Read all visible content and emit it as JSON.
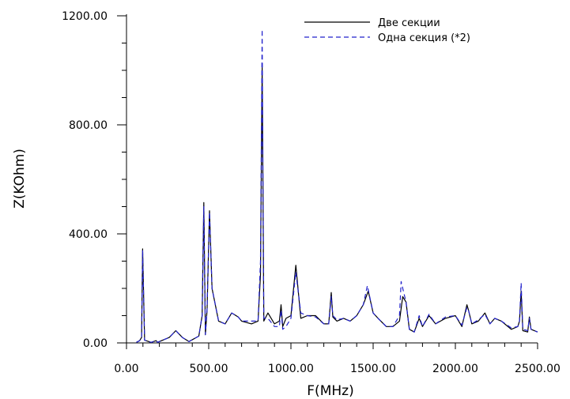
{
  "chart_data": {
    "type": "line",
    "xlabel": "F(MHz)",
    "ylabel": "Z(KOhm)",
    "xlim": [
      0,
      2500
    ],
    "ylim": [
      0,
      1200
    ],
    "x_ticks": [
      "0.00",
      "500.00",
      "1000.00",
      "1500.00",
      "2000.00",
      "2500.00"
    ],
    "y_ticks": [
      "0.00",
      "400.00",
      "800.00",
      "1200.00"
    ],
    "legend_position": "top-right",
    "series": [
      {
        "name": "Две секции",
        "color": "#000000",
        "dash": "solid",
        "x": [
          60,
          80,
          92,
          98,
          110,
          150,
          180,
          190,
          200,
          260,
          300,
          340,
          380,
          440,
          460,
          470,
          480,
          490,
          505,
          520,
          560,
          600,
          640,
          680,
          700,
          760,
          800,
          815,
          825,
          835,
          860,
          900,
          930,
          940,
          950,
          970,
          1000,
          1030,
          1060,
          1100,
          1150,
          1200,
          1230,
          1245,
          1255,
          1280,
          1320,
          1360,
          1400,
          1440,
          1470,
          1500,
          1530,
          1580,
          1620,
          1660,
          1680,
          1700,
          1720,
          1750,
          1780,
          1800,
          1840,
          1880,
          1940,
          2000,
          2040,
          2070,
          2080,
          2100,
          2140,
          2180,
          2210,
          2240,
          2280,
          2340,
          2380,
          2390,
          2400,
          2410,
          2440,
          2450,
          2460,
          2500
        ],
        "y": [
          2,
          8,
          20,
          345,
          10,
          2,
          8,
          2,
          5,
          20,
          45,
          20,
          5,
          25,
          100,
          515,
          30,
          120,
          485,
          200,
          80,
          70,
          110,
          95,
          80,
          70,
          80,
          250,
          1010,
          80,
          110,
          70,
          80,
          140,
          60,
          90,
          100,
          285,
          90,
          100,
          100,
          70,
          70,
          185,
          95,
          80,
          90,
          80,
          100,
          140,
          190,
          110,
          90,
          60,
          60,
          80,
          170,
          150,
          50,
          40,
          90,
          60,
          100,
          70,
          90,
          100,
          60,
          140,
          120,
          70,
          80,
          110,
          70,
          90,
          80,
          50,
          60,
          80,
          190,
          45,
          40,
          95,
          50,
          40
        ]
      },
      {
        "name": "Одна секция (*2)",
        "color": "#2222cc",
        "dash": "dashed",
        "x": [
          60,
          80,
          92,
          98,
          110,
          150,
          180,
          190,
          200,
          260,
          300,
          340,
          380,
          440,
          460,
          470,
          480,
          490,
          505,
          520,
          560,
          600,
          640,
          680,
          700,
          760,
          800,
          815,
          825,
          835,
          860,
          900,
          930,
          940,
          950,
          970,
          1000,
          1030,
          1060,
          1100,
          1150,
          1200,
          1230,
          1245,
          1255,
          1280,
          1320,
          1360,
          1400,
          1440,
          1465,
          1500,
          1530,
          1580,
          1620,
          1660,
          1670,
          1700,
          1720,
          1750,
          1780,
          1800,
          1840,
          1880,
          1940,
          2000,
          2040,
          2070,
          2080,
          2100,
          2140,
          2180,
          2210,
          2240,
          2280,
          2340,
          2380,
          2390,
          2400,
          2410,
          2440,
          2450,
          2460,
          2500
        ],
        "y": [
          2,
          8,
          20,
          340,
          10,
          2,
          8,
          2,
          5,
          20,
          45,
          20,
          5,
          25,
          100,
          500,
          30,
          120,
          480,
          200,
          80,
          70,
          110,
          95,
          80,
          80,
          80,
          300,
          1150,
          90,
          90,
          60,
          60,
          120,
          50,
          60,
          90,
          260,
          110,
          100,
          95,
          70,
          70,
          170,
          100,
          85,
          90,
          80,
          100,
          140,
          210,
          110,
          90,
          60,
          60,
          100,
          225,
          150,
          50,
          40,
          100,
          60,
          105,
          70,
          95,
          100,
          65,
          130,
          120,
          70,
          85,
          105,
          70,
          90,
          80,
          55,
          60,
          80,
          220,
          50,
          45,
          90,
          50,
          40
        ]
      }
    ]
  }
}
